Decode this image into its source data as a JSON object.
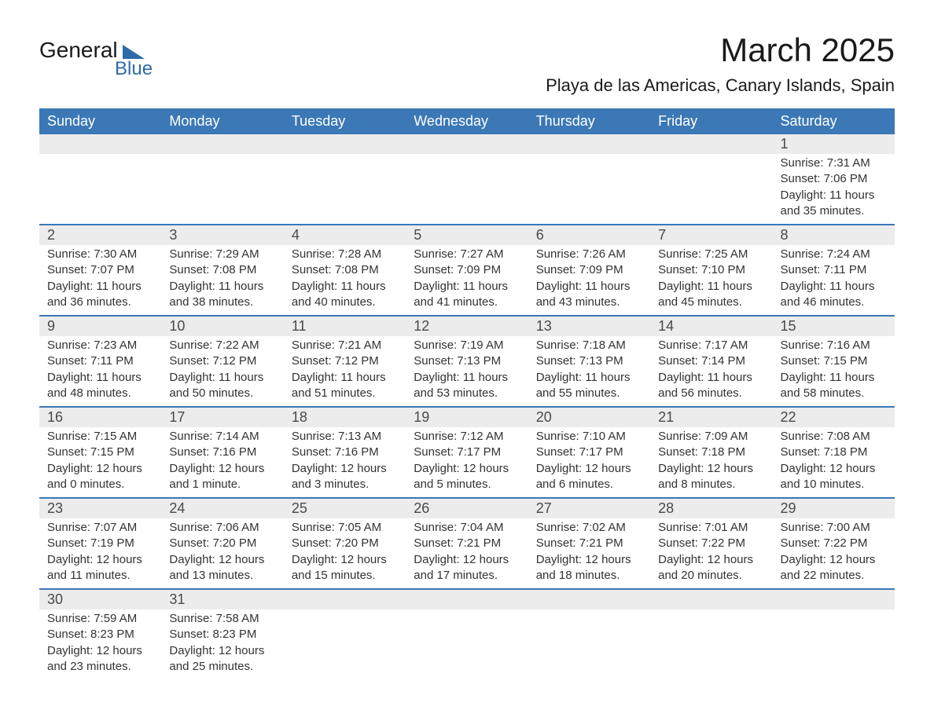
{
  "logo": {
    "text_general": "General",
    "text_blue": "Blue",
    "brand_color": "#2d6ca8"
  },
  "title": "March 2025",
  "location": "Playa de las Americas, Canary Islands, Spain",
  "colors": {
    "header_bg": "#3b78b5",
    "header_text": "#ffffff",
    "daynum_bg": "#ececec",
    "row_border": "#3b78b5",
    "body_text": "#333333"
  },
  "day_headers": [
    "Sunday",
    "Monday",
    "Tuesday",
    "Wednesday",
    "Thursday",
    "Friday",
    "Saturday"
  ],
  "weeks": [
    [
      null,
      null,
      null,
      null,
      null,
      null,
      {
        "n": "1",
        "sunrise": "Sunrise: 7:31 AM",
        "sunset": "Sunset: 7:06 PM",
        "daylight1": "Daylight: 11 hours",
        "daylight2": "and 35 minutes."
      }
    ],
    [
      {
        "n": "2",
        "sunrise": "Sunrise: 7:30 AM",
        "sunset": "Sunset: 7:07 PM",
        "daylight1": "Daylight: 11 hours",
        "daylight2": "and 36 minutes."
      },
      {
        "n": "3",
        "sunrise": "Sunrise: 7:29 AM",
        "sunset": "Sunset: 7:08 PM",
        "daylight1": "Daylight: 11 hours",
        "daylight2": "and 38 minutes."
      },
      {
        "n": "4",
        "sunrise": "Sunrise: 7:28 AM",
        "sunset": "Sunset: 7:08 PM",
        "daylight1": "Daylight: 11 hours",
        "daylight2": "and 40 minutes."
      },
      {
        "n": "5",
        "sunrise": "Sunrise: 7:27 AM",
        "sunset": "Sunset: 7:09 PM",
        "daylight1": "Daylight: 11 hours",
        "daylight2": "and 41 minutes."
      },
      {
        "n": "6",
        "sunrise": "Sunrise: 7:26 AM",
        "sunset": "Sunset: 7:09 PM",
        "daylight1": "Daylight: 11 hours",
        "daylight2": "and 43 minutes."
      },
      {
        "n": "7",
        "sunrise": "Sunrise: 7:25 AM",
        "sunset": "Sunset: 7:10 PM",
        "daylight1": "Daylight: 11 hours",
        "daylight2": "and 45 minutes."
      },
      {
        "n": "8",
        "sunrise": "Sunrise: 7:24 AM",
        "sunset": "Sunset: 7:11 PM",
        "daylight1": "Daylight: 11 hours",
        "daylight2": "and 46 minutes."
      }
    ],
    [
      {
        "n": "9",
        "sunrise": "Sunrise: 7:23 AM",
        "sunset": "Sunset: 7:11 PM",
        "daylight1": "Daylight: 11 hours",
        "daylight2": "and 48 minutes."
      },
      {
        "n": "10",
        "sunrise": "Sunrise: 7:22 AM",
        "sunset": "Sunset: 7:12 PM",
        "daylight1": "Daylight: 11 hours",
        "daylight2": "and 50 minutes."
      },
      {
        "n": "11",
        "sunrise": "Sunrise: 7:21 AM",
        "sunset": "Sunset: 7:12 PM",
        "daylight1": "Daylight: 11 hours",
        "daylight2": "and 51 minutes."
      },
      {
        "n": "12",
        "sunrise": "Sunrise: 7:19 AM",
        "sunset": "Sunset: 7:13 PM",
        "daylight1": "Daylight: 11 hours",
        "daylight2": "and 53 minutes."
      },
      {
        "n": "13",
        "sunrise": "Sunrise: 7:18 AM",
        "sunset": "Sunset: 7:13 PM",
        "daylight1": "Daylight: 11 hours",
        "daylight2": "and 55 minutes."
      },
      {
        "n": "14",
        "sunrise": "Sunrise: 7:17 AM",
        "sunset": "Sunset: 7:14 PM",
        "daylight1": "Daylight: 11 hours",
        "daylight2": "and 56 minutes."
      },
      {
        "n": "15",
        "sunrise": "Sunrise: 7:16 AM",
        "sunset": "Sunset: 7:15 PM",
        "daylight1": "Daylight: 11 hours",
        "daylight2": "and 58 minutes."
      }
    ],
    [
      {
        "n": "16",
        "sunrise": "Sunrise: 7:15 AM",
        "sunset": "Sunset: 7:15 PM",
        "daylight1": "Daylight: 12 hours",
        "daylight2": "and 0 minutes."
      },
      {
        "n": "17",
        "sunrise": "Sunrise: 7:14 AM",
        "sunset": "Sunset: 7:16 PM",
        "daylight1": "Daylight: 12 hours",
        "daylight2": "and 1 minute."
      },
      {
        "n": "18",
        "sunrise": "Sunrise: 7:13 AM",
        "sunset": "Sunset: 7:16 PM",
        "daylight1": "Daylight: 12 hours",
        "daylight2": "and 3 minutes."
      },
      {
        "n": "19",
        "sunrise": "Sunrise: 7:12 AM",
        "sunset": "Sunset: 7:17 PM",
        "daylight1": "Daylight: 12 hours",
        "daylight2": "and 5 minutes."
      },
      {
        "n": "20",
        "sunrise": "Sunrise: 7:10 AM",
        "sunset": "Sunset: 7:17 PM",
        "daylight1": "Daylight: 12 hours",
        "daylight2": "and 6 minutes."
      },
      {
        "n": "21",
        "sunrise": "Sunrise: 7:09 AM",
        "sunset": "Sunset: 7:18 PM",
        "daylight1": "Daylight: 12 hours",
        "daylight2": "and 8 minutes."
      },
      {
        "n": "22",
        "sunrise": "Sunrise: 7:08 AM",
        "sunset": "Sunset: 7:18 PM",
        "daylight1": "Daylight: 12 hours",
        "daylight2": "and 10 minutes."
      }
    ],
    [
      {
        "n": "23",
        "sunrise": "Sunrise: 7:07 AM",
        "sunset": "Sunset: 7:19 PM",
        "daylight1": "Daylight: 12 hours",
        "daylight2": "and 11 minutes."
      },
      {
        "n": "24",
        "sunrise": "Sunrise: 7:06 AM",
        "sunset": "Sunset: 7:20 PM",
        "daylight1": "Daylight: 12 hours",
        "daylight2": "and 13 minutes."
      },
      {
        "n": "25",
        "sunrise": "Sunrise: 7:05 AM",
        "sunset": "Sunset: 7:20 PM",
        "daylight1": "Daylight: 12 hours",
        "daylight2": "and 15 minutes."
      },
      {
        "n": "26",
        "sunrise": "Sunrise: 7:04 AM",
        "sunset": "Sunset: 7:21 PM",
        "daylight1": "Daylight: 12 hours",
        "daylight2": "and 17 minutes."
      },
      {
        "n": "27",
        "sunrise": "Sunrise: 7:02 AM",
        "sunset": "Sunset: 7:21 PM",
        "daylight1": "Daylight: 12 hours",
        "daylight2": "and 18 minutes."
      },
      {
        "n": "28",
        "sunrise": "Sunrise: 7:01 AM",
        "sunset": "Sunset: 7:22 PM",
        "daylight1": "Daylight: 12 hours",
        "daylight2": "and 20 minutes."
      },
      {
        "n": "29",
        "sunrise": "Sunrise: 7:00 AM",
        "sunset": "Sunset: 7:22 PM",
        "daylight1": "Daylight: 12 hours",
        "daylight2": "and 22 minutes."
      }
    ],
    [
      {
        "n": "30",
        "sunrise": "Sunrise: 7:59 AM",
        "sunset": "Sunset: 8:23 PM",
        "daylight1": "Daylight: 12 hours",
        "daylight2": "and 23 minutes."
      },
      {
        "n": "31",
        "sunrise": "Sunrise: 7:58 AM",
        "sunset": "Sunset: 8:23 PM",
        "daylight1": "Daylight: 12 hours",
        "daylight2": "and 25 minutes."
      },
      null,
      null,
      null,
      null,
      null
    ]
  ]
}
